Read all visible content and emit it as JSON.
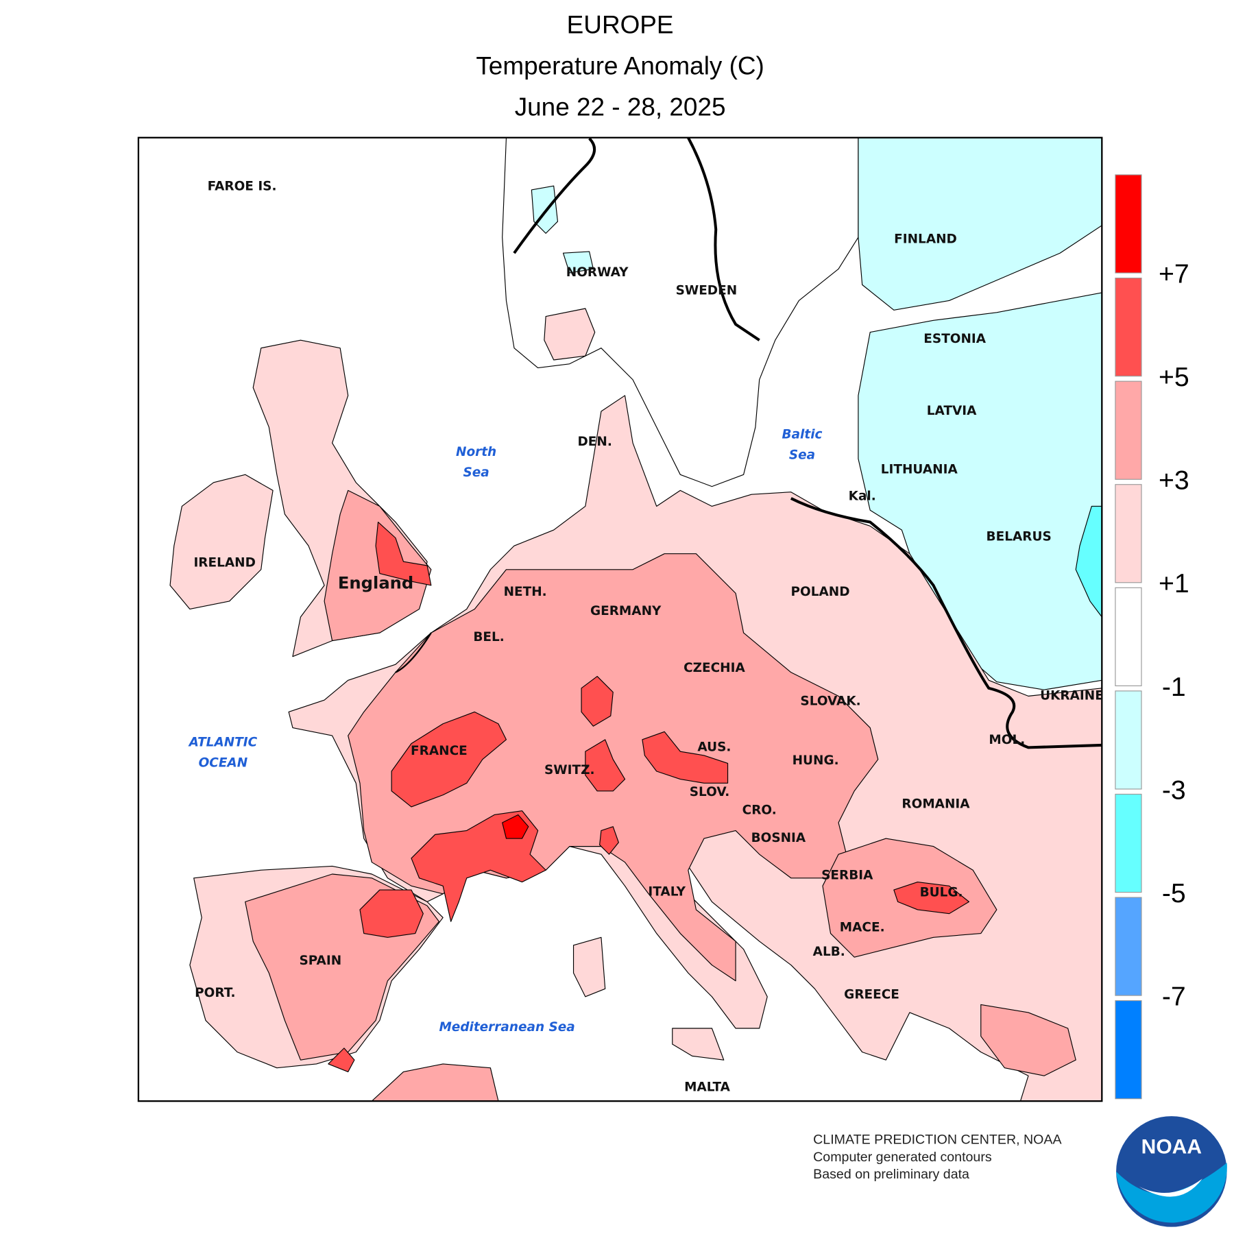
{
  "header": {
    "title": "EUROPE",
    "subtitle": "Temperature Anomaly (C)",
    "dates": "June 22 - 28, 2025"
  },
  "map": {
    "country_labels": [
      "FAROE IS.",
      "NORWAY",
      "SWEDEN",
      "FINLAND",
      "ESTONIA",
      "LATVIA",
      "LITHUANIA",
      "Kal.",
      "BELARUS",
      "POLAND",
      "DEN.",
      "IRELAND",
      "England",
      "NETH.",
      "GERMANY",
      "BEL.",
      "CZECHIA",
      "SLOVAK.",
      "UKRAINE",
      "MOL.",
      "FRANCE",
      "SWITZ.",
      "AUS.",
      "HUNG.",
      "SLOV.",
      "CRO.",
      "ROMANIA",
      "BOSNIA",
      "SERBIA",
      "BULG.",
      "ITALY",
      "MACE.",
      "ALB.",
      "SPAIN",
      "PORT.",
      "GREECE",
      "MALTA"
    ],
    "sea_labels": [
      [
        "North",
        "Sea"
      ],
      [
        "Baltic",
        "Sea"
      ],
      [
        "ATLANTIC",
        "OCEAN"
      ],
      [
        "Mediterranean Sea"
      ]
    ]
  },
  "legend": {
    "colors": [
      "#ff0000",
      "#ff5050",
      "#ffa8a8",
      "#ffd8d8",
      "#ffffff",
      "#ccffff",
      "#66ffff",
      "#55a5ff",
      "#0080ff"
    ],
    "labels": [
      "+7",
      "+5",
      "+3",
      "+1",
      "-1",
      "-3",
      "-5",
      "-7"
    ]
  },
  "footer": {
    "lines": [
      "CLIMATE PREDICTION CENTER, NOAA",
      "Computer generated contours",
      "Based on preliminary data"
    ]
  },
  "logo": "NOAA"
}
